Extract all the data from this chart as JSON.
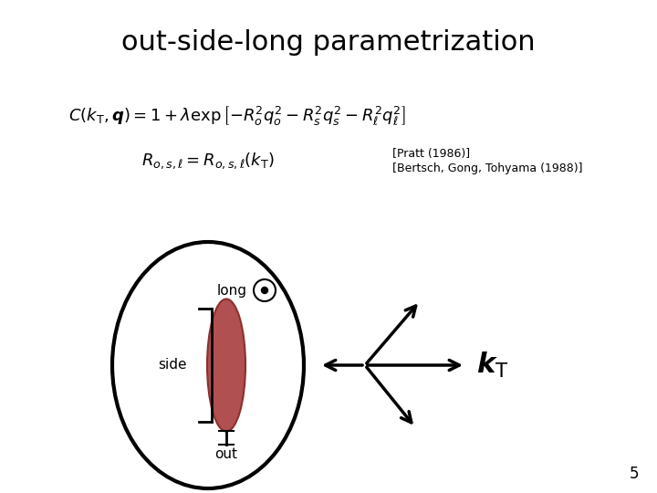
{
  "title": "out-side-long parametrization",
  "title_fontsize": 22,
  "ref1": "[Pratt (1986)]",
  "ref2": "[Bertsch, Gong, Tohyama (1988)]",
  "label_long": "long",
  "label_side": "side",
  "label_out": "out",
  "background_color": "#ffffff",
  "page_number": "5"
}
